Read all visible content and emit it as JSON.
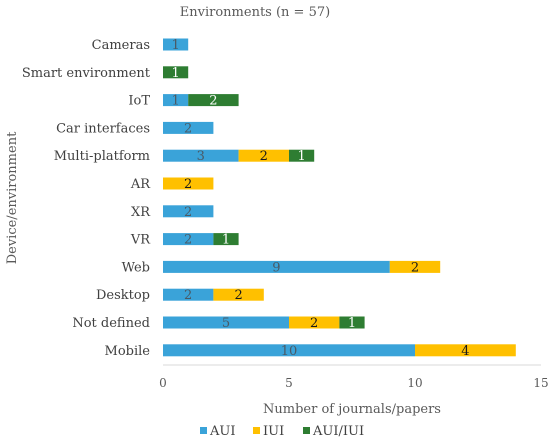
{
  "chart_data": {
    "type": "bar",
    "orientation": "horizontal",
    "stacked": true,
    "title": "Environments (n = 57)",
    "xlabel": "Number of journals/papers",
    "ylabel": "Device/environment",
    "xlim": [
      0,
      15
    ],
    "xticks": [
      0,
      5,
      10,
      15
    ],
    "grid": false,
    "legend_position": "bottom",
    "categories": [
      "Cameras",
      "Smart environment",
      "IoT",
      "Car interfaces",
      "Multi-platform",
      "AR",
      "XR",
      "VR",
      "Web",
      "Desktop",
      "Not defined",
      "Mobile"
    ],
    "series": [
      {
        "name": "AUI",
        "color": "#3aa3d9",
        "label_color": "#4a5a66",
        "values": [
          1,
          0,
          1,
          2,
          3,
          0,
          2,
          2,
          9,
          2,
          5,
          10
        ]
      },
      {
        "name": "IUI",
        "color": "#ffc000",
        "label_color": "#1a1a1a",
        "values": [
          0,
          0,
          0,
          0,
          2,
          2,
          0,
          0,
          2,
          2,
          2,
          4
        ]
      },
      {
        "name": "AUI/IUI",
        "color": "#2e7d32",
        "label_color": "#ffffff",
        "values": [
          0,
          1,
          2,
          0,
          1,
          0,
          0,
          1,
          0,
          0,
          1,
          0
        ]
      }
    ]
  }
}
